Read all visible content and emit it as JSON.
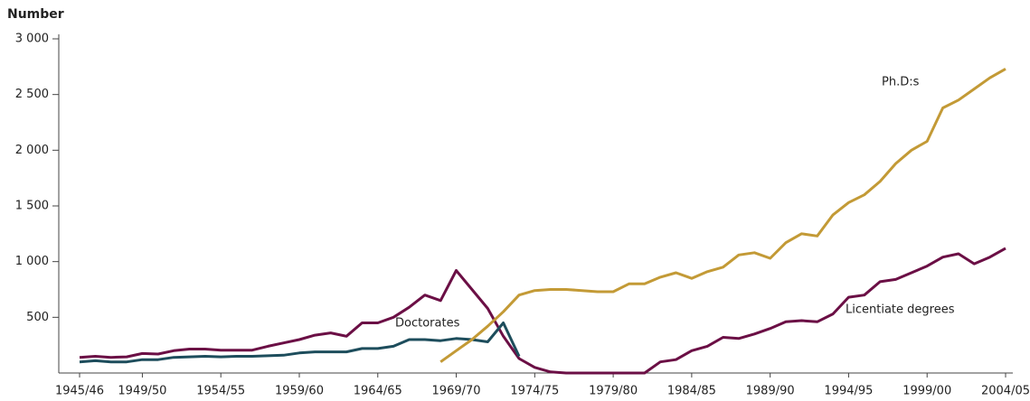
{
  "chart_data": {
    "type": "line",
    "y_label": "Number",
    "categories": [
      "1945/46",
      null,
      null,
      null,
      "1949/50",
      null,
      null,
      null,
      null,
      "1954/55",
      null,
      null,
      null,
      null,
      "1959/60",
      null,
      null,
      null,
      null,
      "1964/65",
      null,
      null,
      null,
      null,
      "1969/70",
      null,
      null,
      null,
      null,
      "1974/75",
      null,
      null,
      null,
      null,
      "1979/80",
      null,
      null,
      null,
      null,
      "1984/85",
      null,
      null,
      null,
      null,
      "1989/90",
      null,
      null,
      null,
      null,
      "1994/95",
      null,
      null,
      null,
      null,
      "1999/00",
      null,
      null,
      null,
      null,
      "2004/05"
    ],
    "series": [
      {
        "name": "Licentiate degrees",
        "color": "#6b0f45",
        "values": [
          140,
          150,
          140,
          145,
          175,
          170,
          200,
          215,
          215,
          205,
          205,
          205,
          240,
          270,
          300,
          340,
          360,
          330,
          450,
          450,
          500,
          590,
          700,
          650,
          920,
          750,
          580,
          330,
          130,
          50,
          10,
          0,
          0,
          0,
          0,
          0,
          0,
          100,
          120,
          200,
          240,
          320,
          310,
          350,
          400,
          460,
          470,
          460,
          530,
          680,
          700,
          820,
          840,
          900,
          960,
          1040,
          1070,
          980,
          1040,
          1120
        ]
      },
      {
        "name": "Doctorates",
        "color": "#1d4d5c",
        "values": [
          100,
          110,
          100,
          100,
          120,
          120,
          140,
          145,
          150,
          145,
          150,
          150,
          155,
          160,
          180,
          190,
          190,
          190,
          220,
          220,
          240,
          300,
          300,
          290,
          310,
          300,
          280,
          450,
          150,
          null,
          null,
          null,
          null,
          null,
          null,
          null,
          null,
          null,
          null,
          null,
          null,
          null,
          null,
          null,
          null,
          null,
          null,
          null,
          null,
          null,
          null,
          null,
          null,
          null,
          null,
          null,
          null,
          null,
          null,
          null
        ]
      },
      {
        "name": "Ph.D:s",
        "color": "#c39a36",
        "values": [
          null,
          null,
          null,
          null,
          null,
          null,
          null,
          null,
          null,
          null,
          null,
          null,
          null,
          null,
          null,
          null,
          null,
          null,
          null,
          null,
          null,
          null,
          null,
          100,
          200,
          300,
          420,
          550,
          700,
          740,
          750,
          750,
          740,
          730,
          730,
          800,
          800,
          860,
          900,
          850,
          910,
          950,
          1060,
          1080,
          1030,
          1170,
          1250,
          1230,
          1420,
          1530,
          1600,
          1720,
          1880,
          2000,
          2080,
          2380,
          2450,
          2550,
          2650,
          2730
        ]
      }
    ],
    "annotations": [
      {
        "text": "Ph.D:s",
        "series": 2
      },
      {
        "text": "Doctorates",
        "series": 1
      },
      {
        "text": "Licentiate degrees",
        "series": 0
      }
    ],
    "ylim": [
      0,
      3000
    ],
    "yticks": [
      {
        "value": 500,
        "label": "500"
      },
      {
        "value": 1000,
        "label": "1 000"
      },
      {
        "value": 1500,
        "label": "1 500"
      },
      {
        "value": 2000,
        "label": "2 000"
      },
      {
        "value": 2500,
        "label": "2 500"
      },
      {
        "value": 3000,
        "label": "3 000"
      }
    ],
    "grid": false
  }
}
